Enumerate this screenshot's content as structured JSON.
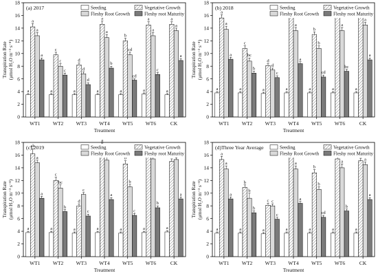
{
  "chart_data": [
    {
      "type": "bar",
      "panel_label": "(a) 2017",
      "categories": [
        "WT1",
        "WT2",
        "WT3",
        "WT4",
        "WT5",
        "WT6",
        "CK"
      ],
      "xlabel": "Treatment",
      "ylabel": "Transpiration Rate (μmol H₂O m⁻² s⁻¹)",
      "ylim": [
        0,
        18
      ],
      "yticks": [
        0,
        2,
        4,
        6,
        8,
        10,
        12,
        14,
        16,
        18
      ],
      "legend_position": "top-right",
      "series": [
        {
          "name": "Seeding",
          "values": [
            3.5,
            3.5,
            3.5,
            3.5,
            3.5,
            3.6,
            3.5
          ],
          "errors": [
            0.2,
            0.2,
            0.2,
            0.2,
            0.2,
            0.2,
            0.2
          ],
          "labels": [
            "a",
            "a",
            "a",
            "a",
            "a",
            "a",
            "a"
          ]
        },
        {
          "name": "Vegetative Growth",
          "values": [
            14.2,
            9.8,
            8.2,
            14.6,
            12.0,
            14.5,
            14.6
          ],
          "errors": [
            0.5,
            0.4,
            0.3,
            0.5,
            0.4,
            0.5,
            0.4
          ],
          "labels": [
            "a",
            "c",
            "d",
            "a",
            "b",
            "a",
            "a"
          ]
        },
        {
          "name": "Fleshy Root Growth",
          "values": [
            12.8,
            8.0,
            6.8,
            12.5,
            9.8,
            12.8,
            13.6
          ],
          "errors": [
            0.5,
            0.4,
            0.3,
            0.5,
            0.4,
            0.5,
            0.4
          ],
          "labels": [
            "a",
            "c",
            "d",
            "a",
            "cd",
            "a",
            "a"
          ]
        },
        {
          "name": "Fleshy root Maturity",
          "values": [
            9.0,
            6.6,
            5.1,
            7.7,
            5.8,
            6.7,
            8.9
          ],
          "errors": [
            0.3,
            0.3,
            0.3,
            0.3,
            0.2,
            0.3,
            0.3
          ],
          "labels": [
            "a",
            "c",
            "d",
            "b",
            "cd",
            "c",
            "a"
          ]
        }
      ]
    },
    {
      "type": "bar",
      "panel_label": "(b) 2018",
      "categories": [
        "WT1",
        "WT2",
        "WT3",
        "WT4",
        "WT5",
        "WT6",
        "CK"
      ],
      "xlabel": "Treatment",
      "ylabel": "Transpiration Rate (μmol H₂O m⁻² s⁻¹)",
      "ylim": [
        0,
        18
      ],
      "yticks": [
        0,
        2,
        4,
        6,
        8,
        10,
        12,
        14,
        16,
        18
      ],
      "legend_position": "top-right",
      "series": [
        {
          "name": "Seeding",
          "values": [
            3.8,
            3.8,
            3.7,
            3.8,
            3.8,
            3.8,
            3.8
          ],
          "errors": [
            0.2,
            0.2,
            0.2,
            0.2,
            0.2,
            0.2,
            0.2
          ],
          "labels": [
            "a",
            "a",
            "a",
            "a",
            "a",
            "a",
            "a"
          ]
        },
        {
          "name": "Vegetative Growth",
          "values": [
            15.6,
            10.8,
            8.1,
            15.8,
            13.0,
            15.7,
            15.8
          ],
          "errors": [
            0.5,
            0.4,
            0.3,
            0.5,
            0.4,
            0.5,
            0.4
          ],
          "labels": [
            "a",
            "c",
            "d",
            "a",
            "b",
            "a",
            "a"
          ]
        },
        {
          "name": "Fleshy Root Growth",
          "values": [
            13.8,
            8.8,
            7.4,
            13.6,
            10.8,
            13.6,
            14.5
          ],
          "errors": [
            0.5,
            0.5,
            0.3,
            0.5,
            0.4,
            0.5,
            0.4
          ],
          "labels": [
            "a",
            "bc",
            "d",
            "a",
            "b",
            "a",
            "a"
          ]
        },
        {
          "name": "Fleshy root Maturity",
          "values": [
            9.1,
            6.9,
            6.2,
            8.4,
            6.3,
            7.2,
            9.0
          ],
          "errors": [
            0.3,
            0.3,
            0.3,
            0.3,
            0.3,
            0.3,
            0.3
          ],
          "labels": [
            "a",
            "b",
            "c",
            "a",
            "cd",
            "bc",
            "a"
          ]
        }
      ]
    },
    {
      "type": "bar",
      "panel_label": "(c) 2019",
      "categories": [
        "WT1",
        "WT2",
        "WT3",
        "WT4",
        "WT5",
        "WT6",
        "CK"
      ],
      "xlabel": "Treatment",
      "ylabel": "Transpiration Rate (μmol H₂O m⁻² s⁻¹)",
      "ylim": [
        0,
        18
      ],
      "yticks": [
        0,
        2,
        4,
        6,
        8,
        10,
        12,
        14,
        16,
        18
      ],
      "legend_position": "top-right",
      "series": [
        {
          "name": "Seeding",
          "values": [
            3.8,
            3.8,
            3.7,
            3.8,
            3.7,
            3.8,
            3.9
          ],
          "errors": [
            0.2,
            0.2,
            0.2,
            0.2,
            0.2,
            0.2,
            0.2
          ],
          "labels": [
            "a",
            "a",
            "a",
            "a",
            "a",
            "a",
            "a"
          ]
        },
        {
          "name": "Vegetative Growth",
          "values": [
            16.2,
            12.0,
            8.0,
            17.3,
            14.6,
            16.2,
            15.0
          ],
          "errors": [
            0.8,
            0.5,
            0.3,
            0.6,
            0.5,
            0.5,
            0.4
          ],
          "labels": [
            "ab",
            "c",
            "d",
            "a",
            "b",
            "ab",
            "b"
          ]
        },
        {
          "name": "Fleshy Root Growth",
          "values": [
            14.8,
            10.8,
            9.8,
            15.2,
            11.0,
            15.4,
            15.3
          ],
          "errors": [
            0.4,
            0.5,
            0.3,
            0.5,
            0.4,
            0.5,
            0.3
          ],
          "labels": [
            "a",
            "bc",
            "c",
            "a",
            "b",
            "a",
            "a"
          ]
        },
        {
          "name": "Fleshy root Maturity",
          "values": [
            9.2,
            7.1,
            6.4,
            9.0,
            6.5,
            7.7,
            9.1
          ],
          "errors": [
            0.3,
            0.3,
            0.3,
            0.3,
            0.3,
            0.3,
            0.3
          ],
          "labels": [
            "a",
            "b",
            "c",
            "a",
            "c",
            "b",
            "a"
          ]
        }
      ]
    },
    {
      "type": "bar",
      "panel_label": "(d)Three Year Average",
      "categories": [
        "WT1",
        "WT2",
        "WT3",
        "WT4",
        "WT5",
        "WT6",
        "CK"
      ],
      "xlabel": "Treatment",
      "ylabel": "Transpiration Rate (μmol H₂O m⁻² s⁻¹)",
      "ylim": [
        0,
        18
      ],
      "yticks": [
        0,
        2,
        4,
        6,
        8,
        10,
        12,
        14,
        16,
        18
      ],
      "legend_position": "top-right",
      "series": [
        {
          "name": "Seeding",
          "values": [
            3.7,
            3.7,
            3.6,
            3.7,
            3.7,
            3.7,
            3.7
          ],
          "errors": [
            0.2,
            0.2,
            0.2,
            0.2,
            0.2,
            0.2,
            0.2
          ],
          "labels": [
            "a",
            "a",
            "a",
            "a",
            "a",
            "a",
            "a"
          ]
        },
        {
          "name": "Vegetative Growth",
          "values": [
            15.3,
            10.9,
            8.1,
            16.0,
            13.2,
            15.4,
            15.1
          ],
          "errors": [
            0.5,
            0.4,
            0.3,
            0.6,
            0.5,
            0.5,
            0.4
          ],
          "labels": [
            "a",
            "b",
            "c",
            "a",
            "b",
            "a",
            "a"
          ]
        },
        {
          "name": "Fleshy Root Growth",
          "values": [
            13.8,
            9.2,
            8.0,
            13.8,
            10.6,
            14.0,
            14.5
          ],
          "errors": [
            0.5,
            0.8,
            0.3,
            0.5,
            0.4,
            0.6,
            0.4
          ],
          "labels": [
            "a",
            "b",
            "c",
            "a",
            "b",
            "a",
            "a"
          ]
        },
        {
          "name": "Fleshy root Maturity",
          "values": [
            9.1,
            6.9,
            5.9,
            8.4,
            6.2,
            7.2,
            9.0
          ],
          "errors": [
            0.3,
            0.3,
            0.3,
            0.3,
            0.3,
            0.3,
            0.3
          ],
          "labels": [
            "a",
            "b",
            "c",
            "a",
            "cd",
            "b",
            "a"
          ]
        }
      ]
    }
  ]
}
